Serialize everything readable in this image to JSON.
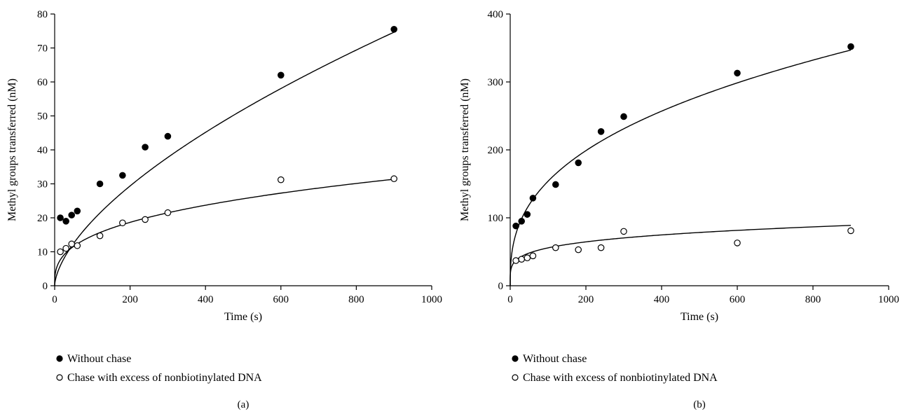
{
  "chart_data": [
    {
      "type": "scatter",
      "panel_label": "(a)",
      "xlabel": "Time (s)",
      "ylabel": "Methyl groups transferred (nM)",
      "xlim": [
        0,
        1000
      ],
      "ylim": [
        0,
        80
      ],
      "xticks": [
        0,
        200,
        400,
        600,
        800,
        1000
      ],
      "yticks": [
        0,
        10,
        20,
        30,
        40,
        50,
        60,
        70,
        80
      ],
      "grid": false,
      "legend_placement": "below",
      "series": [
        {
          "name": "Without chase",
          "marker": "filled-circle",
          "color": "#000000",
          "x": [
            15,
            30,
            45,
            60,
            120,
            180,
            240,
            300,
            600,
            900
          ],
          "y": [
            20,
            19,
            20.8,
            22,
            30,
            32.5,
            40.8,
            44,
            62,
            75.5
          ],
          "fit": {
            "a": 1.1,
            "b": 0.62
          }
        },
        {
          "name": "Chase with excess of nonbiotinylated DNA",
          "marker": "open-circle",
          "color": "#000000",
          "x": [
            15,
            30,
            45,
            60,
            120,
            180,
            240,
            300,
            600,
            900
          ],
          "y": [
            10,
            11,
            12.3,
            11.8,
            14.7,
            18.5,
            19.5,
            21.5,
            31.2,
            31.5
          ],
          "fit": {
            "a": 3.0,
            "b": 0.345
          }
        }
      ]
    },
    {
      "type": "scatter",
      "panel_label": "(b)",
      "xlabel": "Time (s)",
      "ylabel": "Methyl groups transferred (nM)",
      "xlim": [
        0,
        1000
      ],
      "ylim": [
        0,
        400
      ],
      "xticks": [
        0,
        200,
        400,
        600,
        800,
        1000
      ],
      "yticks": [
        0,
        100,
        200,
        300,
        400
      ],
      "grid": false,
      "legend_placement": "below",
      "series": [
        {
          "name": "Without chase",
          "marker": "filled-circle",
          "color": "#000000",
          "x": [
            15,
            30,
            45,
            60,
            120,
            180,
            240,
            300,
            600,
            900
          ],
          "y": [
            88,
            95,
            105,
            129,
            149,
            181,
            227,
            249,
            313,
            352
          ],
          "fit": {
            "a": 28.0,
            "b": 0.37
          }
        },
        {
          "name": "Chase with excess of nonbiotinylated DNA",
          "marker": "open-circle",
          "color": "#000000",
          "x": [
            15,
            30,
            45,
            60,
            120,
            180,
            240,
            300,
            600,
            900
          ],
          "y": [
            37,
            39,
            41,
            44,
            56,
            53,
            56,
            80,
            63,
            81
          ],
          "fit": {
            "a": 21.0,
            "b": 0.212
          }
        }
      ]
    }
  ]
}
